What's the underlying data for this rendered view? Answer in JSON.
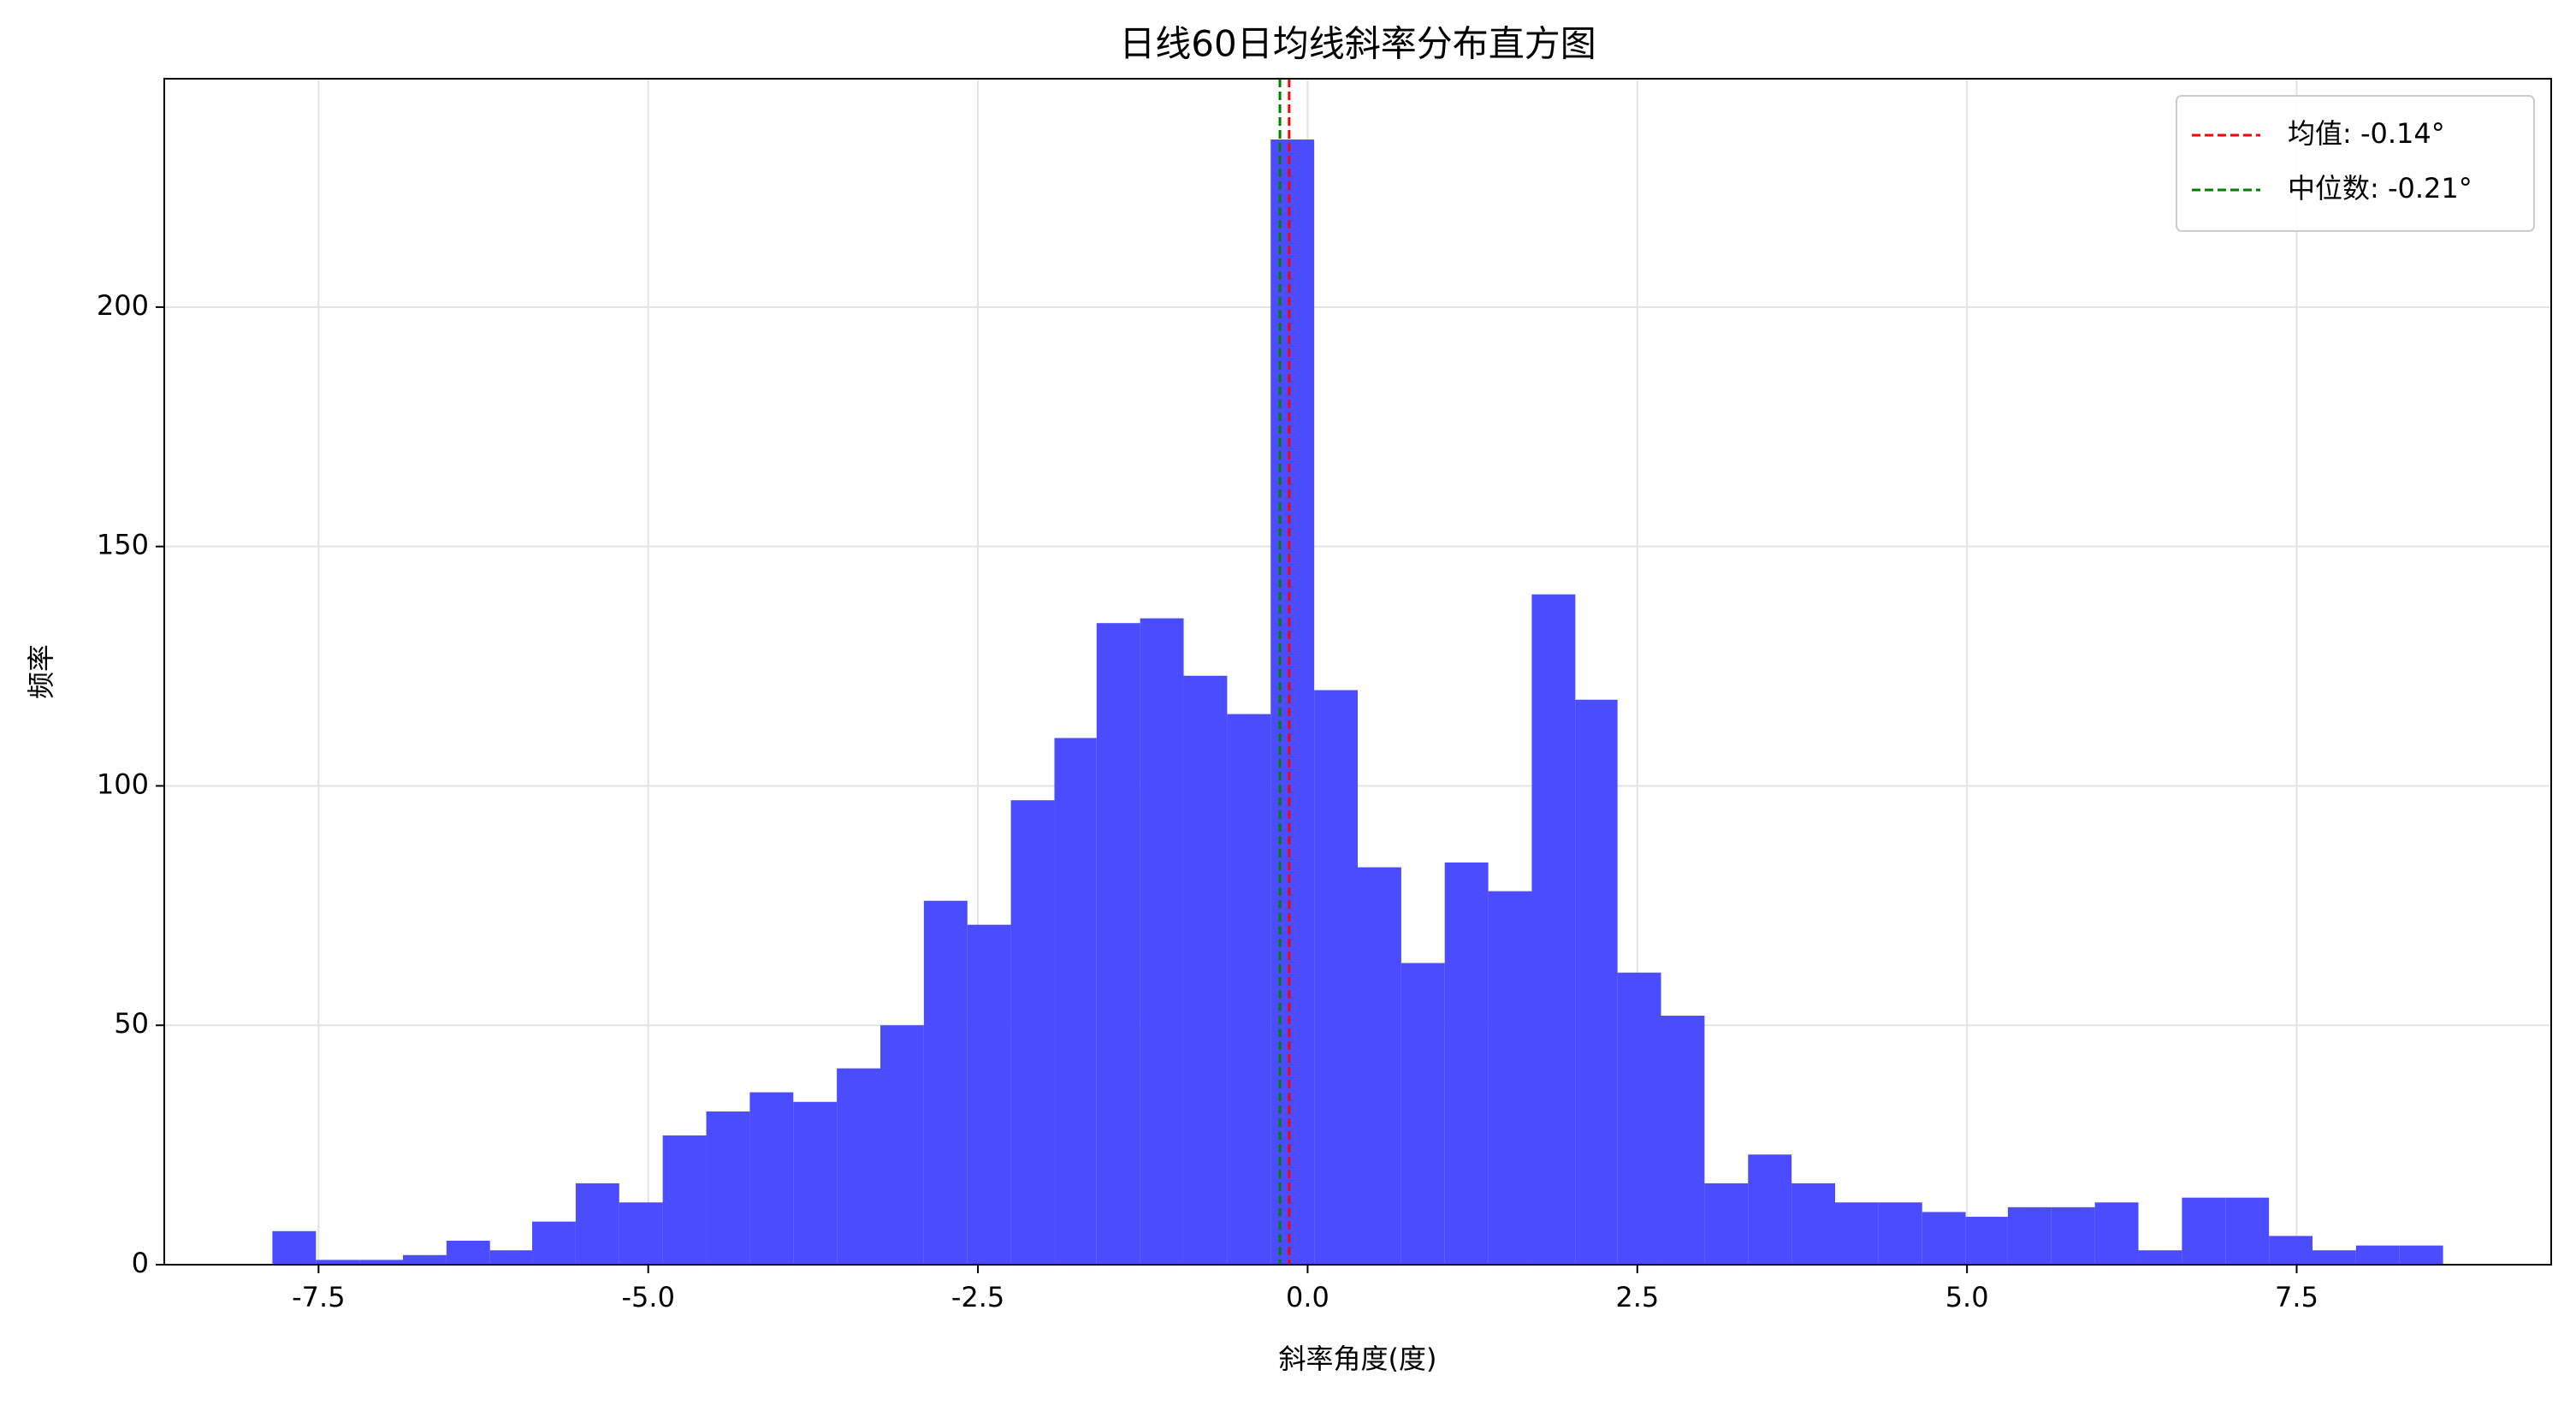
{
  "chart_data": {
    "type": "histogram",
    "title": "日线60日均线斜率分布直方图",
    "xlabel": "斜率角度(度)",
    "ylabel": "频率",
    "bins": [
      -7.85,
      -7.52,
      -7.19,
      -6.86,
      -6.53,
      -6.2,
      -5.88,
      -5.55,
      -5.22,
      -4.89,
      -4.56,
      -4.23,
      -3.9,
      -3.57,
      -3.24,
      -2.91,
      -2.58,
      -2.25,
      -1.92,
      -1.6,
      -1.27,
      -0.94,
      -0.61,
      -0.28,
      0.05,
      0.38,
      0.71,
      1.04,
      1.37,
      1.7,
      2.03,
      2.35,
      2.68,
      3.01,
      3.34,
      3.67,
      4.0,
      4.33,
      4.66,
      4.99,
      5.31,
      5.64,
      5.97,
      6.3,
      6.63,
      6.96,
      7.29,
      7.62,
      7.95,
      8.28,
      8.61
    ],
    "values": [
      7,
      1,
      1,
      2,
      5,
      3,
      9,
      17,
      13,
      27,
      32,
      36,
      34,
      41,
      50,
      76,
      71,
      97,
      110,
      134,
      135,
      123,
      115,
      235,
      120,
      83,
      63,
      84,
      78,
      140,
      118,
      61,
      52,
      17,
      23,
      17,
      13,
      13,
      11,
      10,
      12,
      12,
      13,
      3,
      14,
      14,
      6,
      3,
      4,
      4
    ],
    "color": "#4b4bff",
    "vlines": [
      {
        "name": "均值: -0.14°",
        "value": -0.14,
        "color": "#ff0000"
      },
      {
        "name": "中位数: -0.21°",
        "value": -0.21,
        "color": "#008000"
      }
    ],
    "xlim": [
      -8.67,
      9.43
    ],
    "ylim": [
      0,
      247.7
    ],
    "xticks": [
      {
        "value": -7.5,
        "label": "-7.5"
      },
      {
        "value": -5,
        "label": "-5.0"
      },
      {
        "value": -2.5,
        "label": "-2.5"
      },
      {
        "value": 0,
        "label": "0.0"
      },
      {
        "value": 2.5,
        "label": "2.5"
      },
      {
        "value": 5,
        "label": "5.0"
      },
      {
        "value": 7.5,
        "label": "7.5"
      }
    ],
    "yticks": [
      0,
      50,
      100,
      150,
      200
    ],
    "grid": true,
    "legend": "upper right"
  }
}
